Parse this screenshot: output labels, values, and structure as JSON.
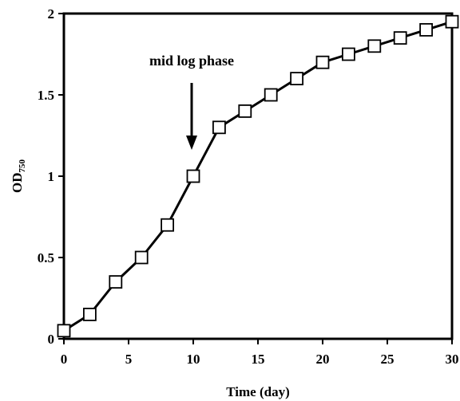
{
  "chart_data": {
    "type": "line",
    "xlabel": "Time (day)",
    "ylabel_main": "OD",
    "ylabel_sub": "750",
    "xlim": [
      0,
      30
    ],
    "ylim": [
      0,
      2
    ],
    "x_ticks": [
      "0",
      "5",
      "10",
      "15",
      "20",
      "25",
      "30"
    ],
    "y_ticks": [
      "0",
      "0.5",
      "1",
      "1.5",
      "2"
    ],
    "grid": false,
    "series": [
      {
        "marker": "open-square",
        "color": "#000000",
        "x": [
          0,
          2,
          4,
          6,
          8,
          10,
          12,
          14,
          16,
          18,
          20,
          22,
          24,
          26,
          28,
          30
        ],
        "y": [
          0.05,
          0.15,
          0.35,
          0.5,
          0.7,
          1.0,
          1.3,
          1.4,
          1.5,
          1.6,
          1.7,
          1.75,
          1.8,
          1.85,
          1.9,
          1.95
        ]
      }
    ],
    "annotation": {
      "text": "mid log phase",
      "x": 10,
      "y": 1.0
    }
  }
}
